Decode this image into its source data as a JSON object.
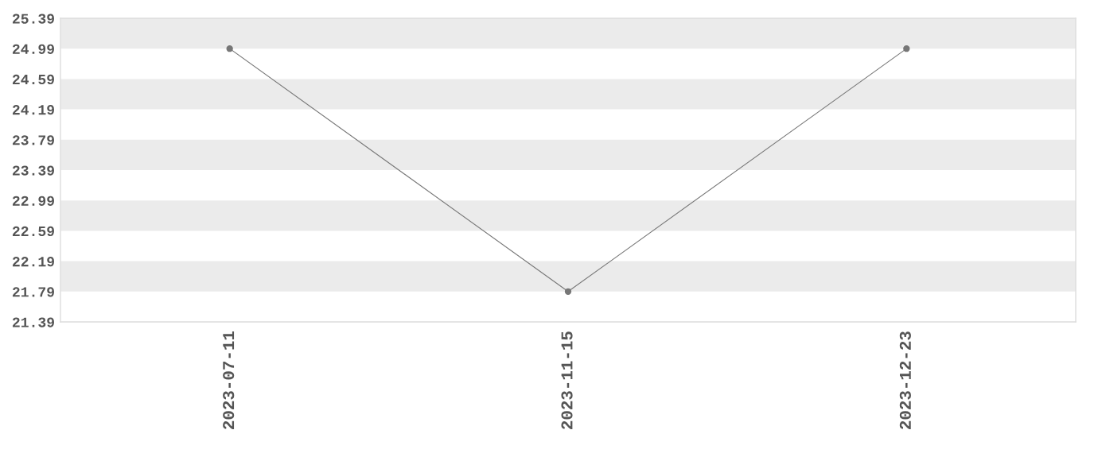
{
  "chart_data": {
    "type": "line",
    "categories": [
      "2023-07-11",
      "2023-11-15",
      "2023-12-23"
    ],
    "series": [
      {
        "color": "#777777",
        "values": [
          24.99,
          21.79,
          24.99
        ]
      }
    ],
    "marker": "circle",
    "line_style": "solid",
    "ylim": [
      21.39,
      25.39
    ],
    "yticks": [
      21.39,
      21.79,
      22.19,
      22.59,
      22.99,
      23.39,
      23.79,
      24.19,
      24.59,
      24.99,
      25.39
    ],
    "bands": [
      {
        "axis": "y",
        "from": 21.79,
        "to": 22.19,
        "color": "#ebebeb"
      },
      {
        "axis": "y",
        "from": 22.59,
        "to": 22.99,
        "color": "#ebebeb"
      },
      {
        "axis": "y",
        "from": 23.39,
        "to": 23.79,
        "color": "#ebebeb"
      },
      {
        "axis": "y",
        "from": 24.19,
        "to": 24.59,
        "color": "#ebebeb"
      },
      {
        "axis": "y",
        "from": 24.99,
        "to": 25.39,
        "color": "#ebebeb"
      }
    ],
    "grid": false,
    "legend": false
  }
}
